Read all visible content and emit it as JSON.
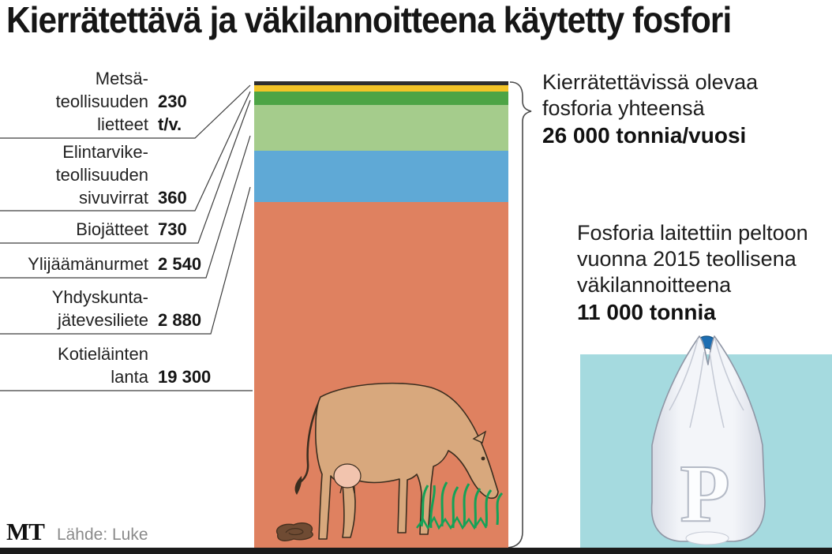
{
  "title": "Kierrätettävä ja väkilannoitteena käytetty fosfori",
  "categories_panel": {
    "rows": [
      {
        "label": "Metsä-\nteollisuuden\nlietteet",
        "value": "230\nt/v."
      },
      {
        "label": "Elintarvike-\nteollisuuden\nsivuvirrat",
        "value": "360"
      },
      {
        "label": "Biojätteet",
        "value": "730"
      },
      {
        "label": "Ylijäämänurmet",
        "value": "2 540"
      },
      {
        "label": "Yhdyskunta-\njätevesiliete",
        "value": "2 880"
      },
      {
        "label": "Kotieläinten\nlanta",
        "value": "19 300"
      }
    ]
  },
  "annotations": {
    "recyclable_total": {
      "text": "Kierrätettävissä olevaa\nfosforia yhteensä",
      "bold": "26 000 tonnia/vuosi"
    },
    "fertilizer_2015": {
      "text": "Fosforia laitettiin peltoon\nvuonna 2015 teollisena\nväkilannoitteena",
      "bold": "11 000 tonnia"
    }
  },
  "bag": {
    "letter": "P"
  },
  "footer": {
    "logo": "MT",
    "source": "Lähde: Luke"
  },
  "chart_data": {
    "type": "bar",
    "stacked": true,
    "orientation": "vertical",
    "title": "Kierrätettävä ja väkilannoitteena käytetty fosfori",
    "unit": "t/v.",
    "categories": [
      "Metsäteollisuuden lietteet",
      "Elintarviketeollisuuden sivuvirrat",
      "Biojätteet",
      "Ylijäämänurmet",
      "Yhdyskuntajätevesiliete",
      "Kotieläinten lanta"
    ],
    "values": [
      230,
      360,
      730,
      2540,
      2880,
      19300
    ],
    "display_values": [
      "230 t/v.",
      "360",
      "730",
      "2 540",
      "2 880",
      "19 300"
    ],
    "colors": [
      "#2F2F2F",
      "#F3C428",
      "#4DA445",
      "#A5CC8C",
      "#5FA9D6",
      "#DF8160"
    ],
    "total_value": 26040,
    "total_label": "26 000 tonnia/vuosi",
    "comparison": {
      "label": "Fosforia peltoon teollisena väkilannoitteena 2015",
      "value": 11000,
      "display": "11 000 tonnia"
    },
    "legend_position": "left-callouts",
    "grid": false
  }
}
